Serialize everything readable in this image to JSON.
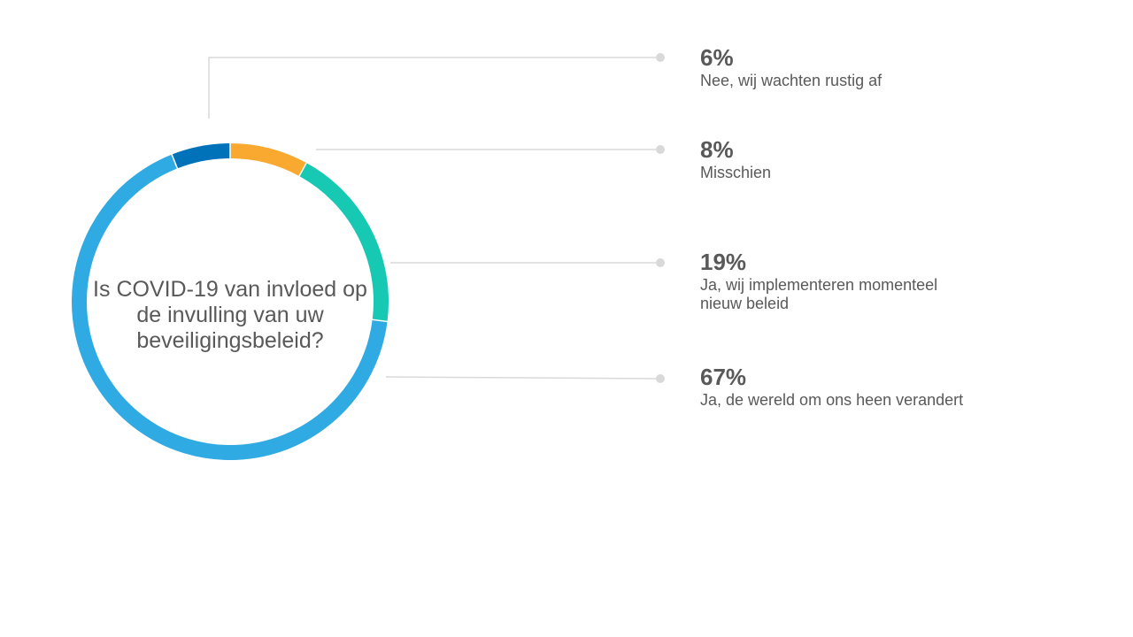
{
  "chart_data": {
    "type": "pie",
    "variant": "donut",
    "title": "Is COVID-19 van invloed op de invulling van uw beveiligingsbeleid?",
    "slices": [
      {
        "label": "Nee, wij wachten rustig af",
        "display": "6%",
        "value": 6,
        "color": "#0072BA"
      },
      {
        "label": "Misschien",
        "display": "8%",
        "value": 8,
        "color": "#F9A930"
      },
      {
        "label": "Ja, wij implementeren momenteel nieuw beleid",
        "display": "19%",
        "value": 19,
        "color": "#17C8B3"
      },
      {
        "label": "Ja, de wereld om ons heen verandert",
        "display": "67%",
        "value": 67,
        "color": "#30AAE3"
      }
    ],
    "leader_color": "#D9D9D9"
  }
}
